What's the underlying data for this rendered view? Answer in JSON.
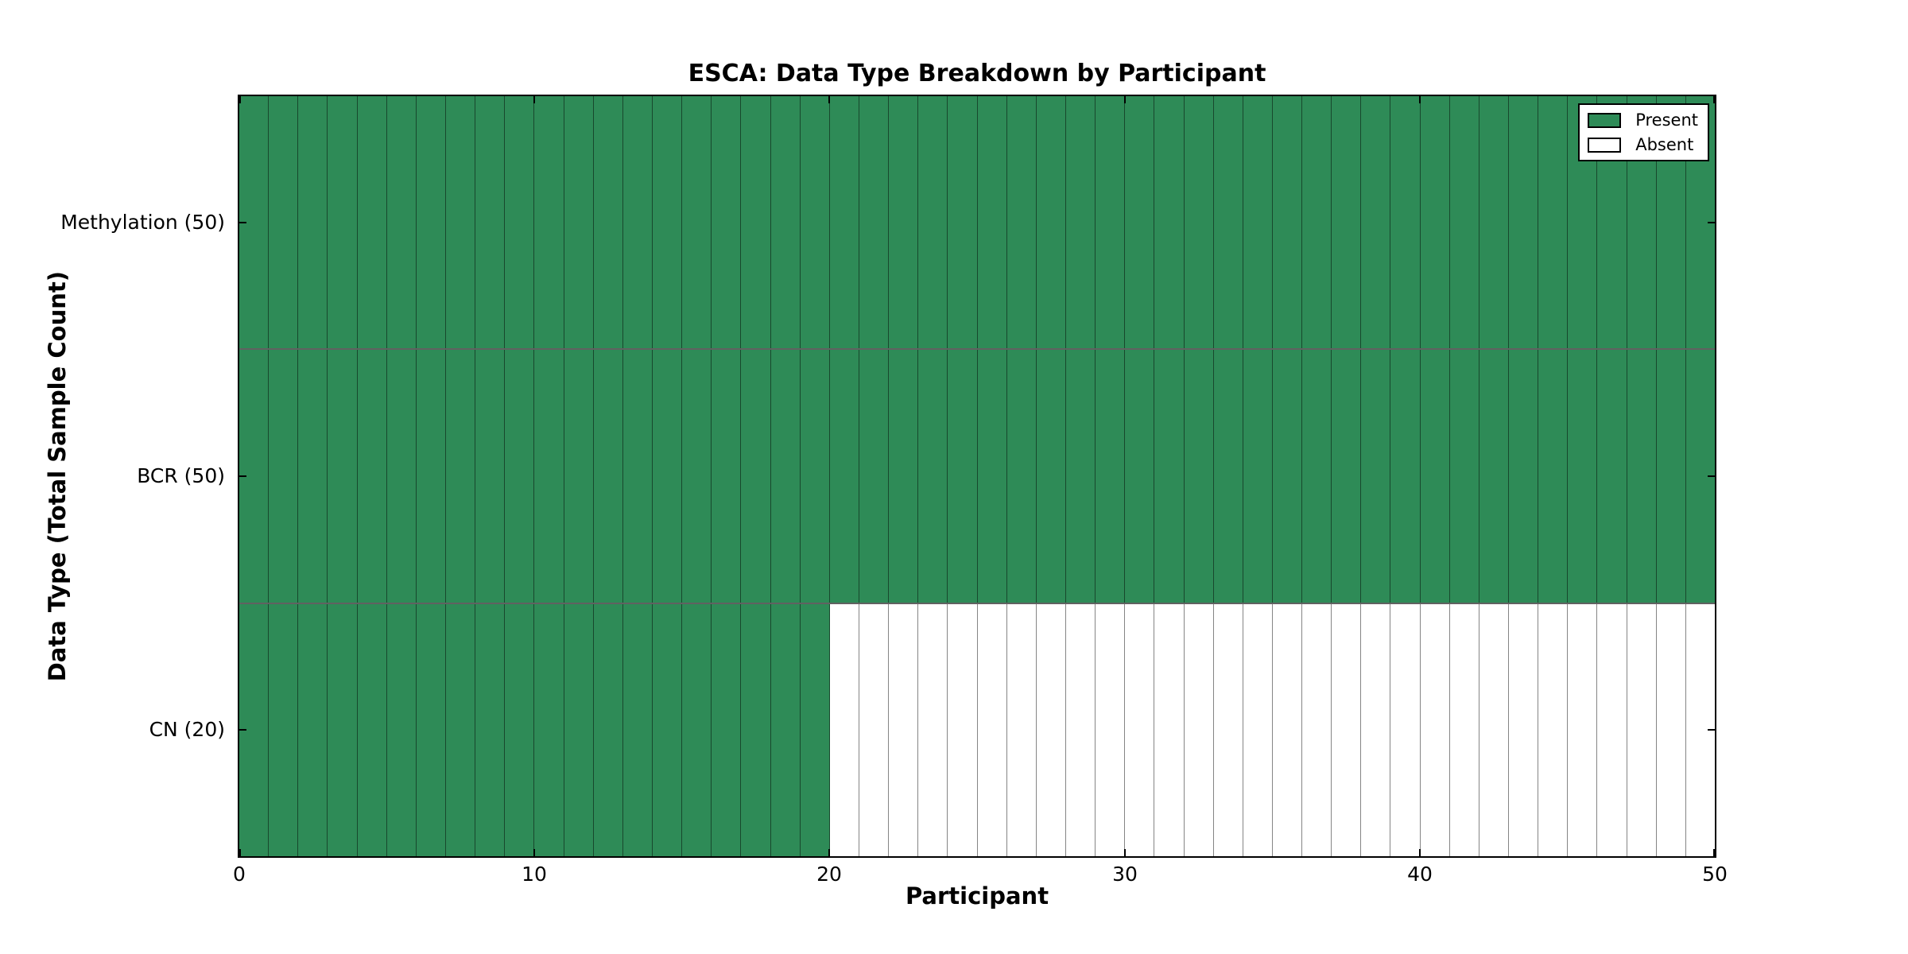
{
  "chart_data": {
    "type": "heatmap",
    "title": "ESCA: Data Type Breakdown by Participant",
    "xlabel": "Participant",
    "ylabel": "Data Type (Total Sample Count)",
    "x_ticks": [
      0,
      10,
      20,
      30,
      40,
      50
    ],
    "x_range": [
      0,
      50
    ],
    "n_participants": 50,
    "rows": [
      {
        "label": "Methylation (50)",
        "total_sample_count": 50,
        "present_count": 50,
        "absent_count": 0
      },
      {
        "label": "BCR (50)",
        "total_sample_count": 50,
        "present_count": 50,
        "absent_count": 0
      },
      {
        "label": "CN (20)",
        "total_sample_count": 20,
        "present_count": 20,
        "absent_count": 30
      }
    ],
    "legend": [
      {
        "label": "Present",
        "color": "#2E8B57"
      },
      {
        "label": "Absent",
        "color": "#FFFFFF"
      }
    ],
    "legend_position": "upper right",
    "colors": {
      "present": "#2E8B57",
      "absent": "#FFFFFF",
      "cell_edge": "rgba(0,0,0,0.48)",
      "axis": "#000000",
      "background": "#FFFFFF"
    },
    "grid": "cell-borders",
    "tick_direction": "in"
  }
}
